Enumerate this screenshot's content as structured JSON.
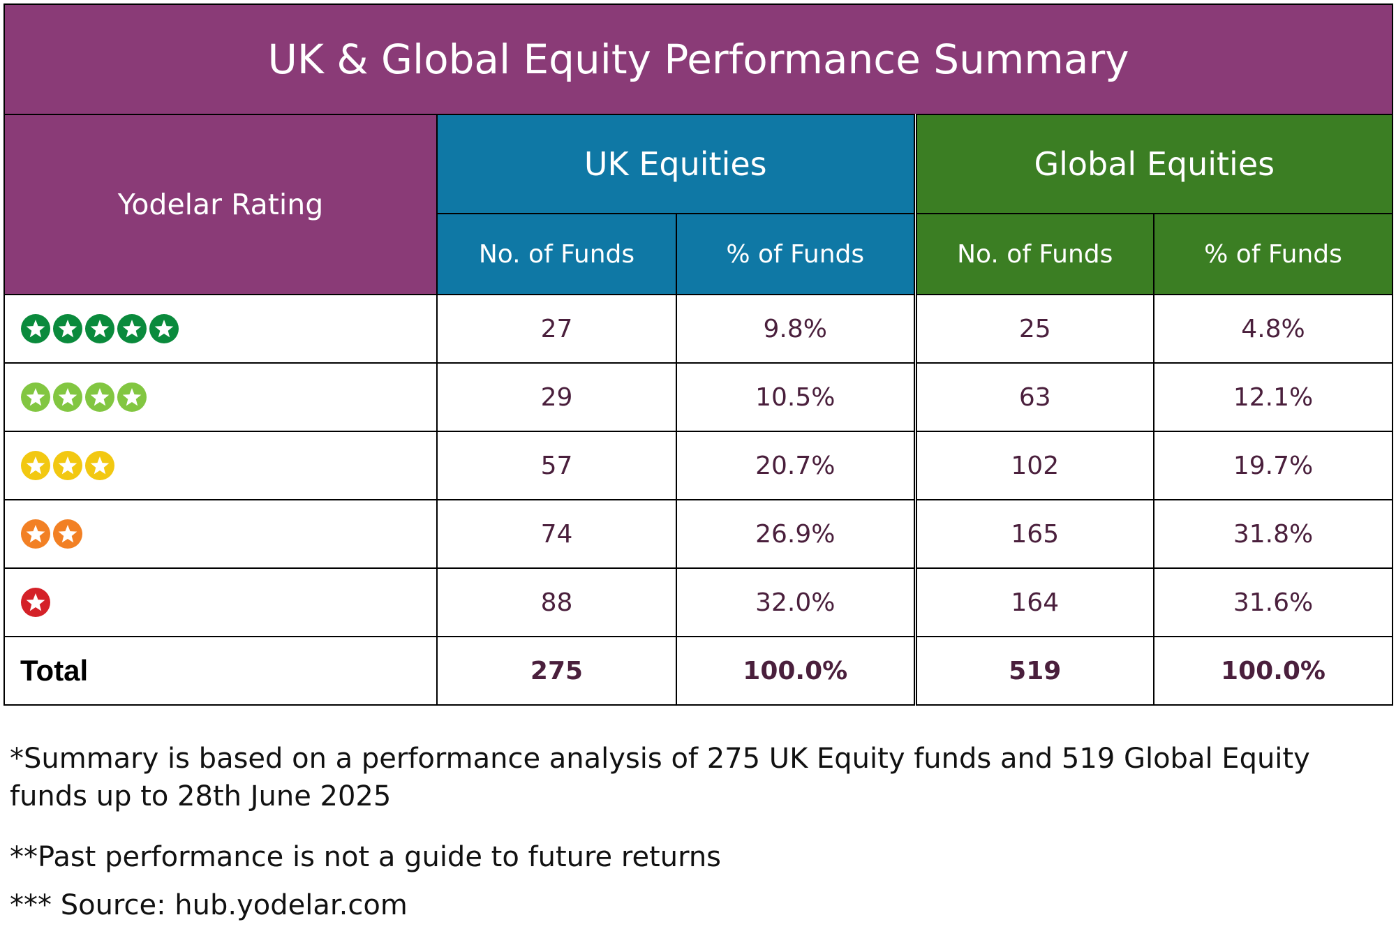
{
  "title": "UK & Global Equity Performance Summary",
  "header": {
    "rating_label": "Yodelar Rating",
    "uk_group": "UK Equities",
    "global_group": "Global Equities",
    "uk_count_label": "No. of Funds",
    "uk_pct_label": "% of Funds",
    "global_count_label": "No. of Funds",
    "global_pct_label": "% of Funds"
  },
  "colors": {
    "purple": "#8a3b77",
    "uk_blue": "#0f78a5",
    "global_green": "#3b7e23",
    "value_text": "#4a1f3c",
    "star_5": "#0a8a3c",
    "star_4": "#82c641",
    "star_3": "#f2c811",
    "star_2": "#f28024",
    "star_1": "#d42128"
  },
  "rows": [
    {
      "rating": "5 stars",
      "stars": 5,
      "star_color": "#0a8a3c",
      "uk_count": "27",
      "uk_pct": "9.8%",
      "global_count": "25",
      "global_pct": "4.8%"
    },
    {
      "rating": "4 stars",
      "stars": 4,
      "star_color": "#82c641",
      "uk_count": "29",
      "uk_pct": "10.5%",
      "global_count": "63",
      "global_pct": "12.1%"
    },
    {
      "rating": "3 stars",
      "stars": 3,
      "star_color": "#f2c811",
      "uk_count": "57",
      "uk_pct": "20.7%",
      "global_count": "102",
      "global_pct": "19.7%"
    },
    {
      "rating": "2 stars",
      "stars": 2,
      "star_color": "#f28024",
      "uk_count": "74",
      "uk_pct": "26.9%",
      "global_count": "165",
      "global_pct": "31.8%"
    },
    {
      "rating": "1 star",
      "stars": 1,
      "star_color": "#d42128",
      "uk_count": "88",
      "uk_pct": "32.0%",
      "global_count": "164",
      "global_pct": "31.6%"
    }
  ],
  "total": {
    "label": "Total",
    "uk_count": "275",
    "uk_pct": "100.0%",
    "global_count": "519",
    "global_pct": "100.0%"
  },
  "notes": [
    "*Summary is based on a performance analysis of 275 UK Equity funds and 519 Global Equity funds up to 28th June 2025",
    "**Past performance is not a guide to future returns",
    "*** Source: hub.yodelar.com"
  ]
}
